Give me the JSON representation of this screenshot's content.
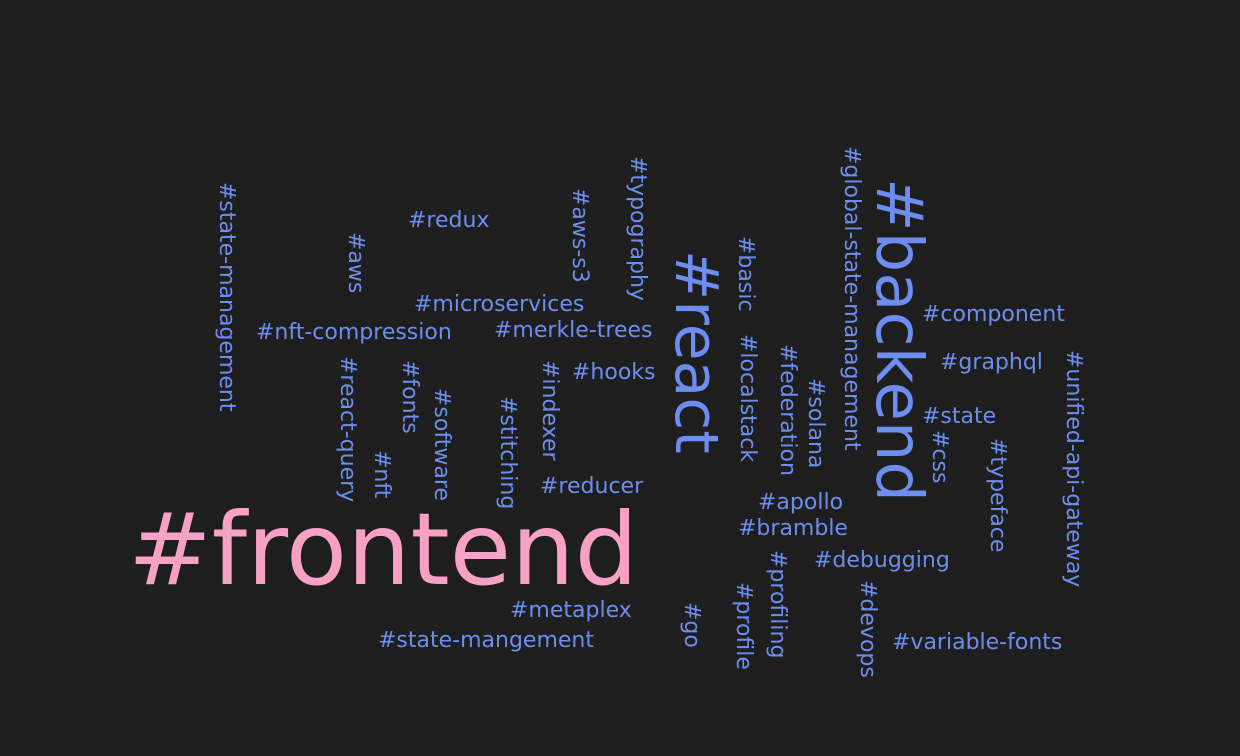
{
  "colors": {
    "background": "#1e1e1e",
    "primary": "#6d8ef0",
    "highlight": "#f7a1c4"
  },
  "tags": [
    {
      "id": "frontend",
      "text": "#frontend",
      "highlight": true
    },
    {
      "id": "backend",
      "text": "#backend"
    },
    {
      "id": "react",
      "text": "#react"
    },
    {
      "id": "state-management",
      "text": "#state-management"
    },
    {
      "id": "aws",
      "text": "#aws"
    },
    {
      "id": "redux",
      "text": "#redux"
    },
    {
      "id": "aws-s3",
      "text": "#aws-s3"
    },
    {
      "id": "typography",
      "text": "#typography"
    },
    {
      "id": "basic",
      "text": "#basic"
    },
    {
      "id": "global-state-management",
      "text": "#global-state-management"
    },
    {
      "id": "microservices",
      "text": "#microservices"
    },
    {
      "id": "nft-compression",
      "text": "#nft-compression"
    },
    {
      "id": "merkle-trees",
      "text": "#merkle-trees"
    },
    {
      "id": "component",
      "text": "#component"
    },
    {
      "id": "localstack",
      "text": "#localstack"
    },
    {
      "id": "graphql",
      "text": "#graphql"
    },
    {
      "id": "react-query",
      "text": "#react-query"
    },
    {
      "id": "fonts",
      "text": "#fonts"
    },
    {
      "id": "indexer",
      "text": "#indexer"
    },
    {
      "id": "hooks",
      "text": "#hooks"
    },
    {
      "id": "federation",
      "text": "#federation"
    },
    {
      "id": "unified-api-gateway",
      "text": "#unified-api-gateway"
    },
    {
      "id": "software",
      "text": "#software"
    },
    {
      "id": "stitching",
      "text": "#stitching"
    },
    {
      "id": "solana",
      "text": "#solana"
    },
    {
      "id": "state",
      "text": "#state"
    },
    {
      "id": "css",
      "text": "#css"
    },
    {
      "id": "typeface",
      "text": "#typeface"
    },
    {
      "id": "nft",
      "text": "#nft"
    },
    {
      "id": "reducer",
      "text": "#reducer"
    },
    {
      "id": "apollo",
      "text": "#apollo"
    },
    {
      "id": "bramble",
      "text": "#bramble"
    },
    {
      "id": "debugging",
      "text": "#debugging"
    },
    {
      "id": "profiling",
      "text": "#profiling"
    },
    {
      "id": "profile",
      "text": "#profile"
    },
    {
      "id": "devops",
      "text": "#devops"
    },
    {
      "id": "metaplex",
      "text": "#metaplex"
    },
    {
      "id": "go",
      "text": "#go"
    },
    {
      "id": "state-mangement",
      "text": "#state-mangement"
    },
    {
      "id": "variable-fonts",
      "text": "#variable-fonts"
    }
  ]
}
